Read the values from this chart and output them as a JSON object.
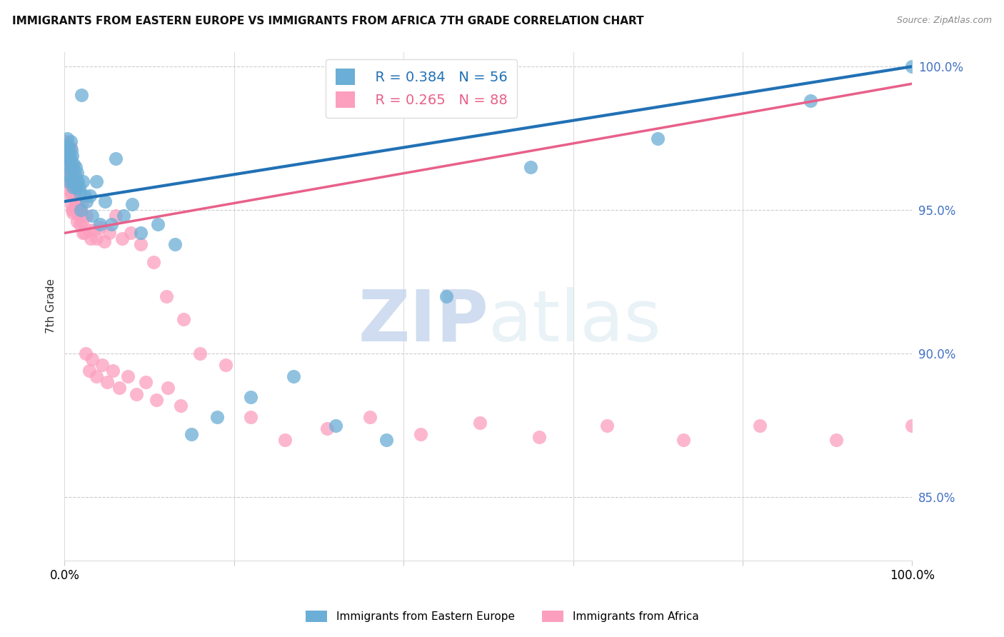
{
  "title": "IMMIGRANTS FROM EASTERN EUROPE VS IMMIGRANTS FROM AFRICA 7TH GRADE CORRELATION CHART",
  "source": "Source: ZipAtlas.com",
  "ylabel": "7th Grade",
  "ytick_labels": [
    "85.0%",
    "90.0%",
    "95.0%",
    "100.0%"
  ],
  "ytick_values": [
    0.85,
    0.9,
    0.95,
    1.0
  ],
  "legend_blue_r": "R = 0.384",
  "legend_blue_n": "N = 56",
  "legend_pink_r": "R = 0.265",
  "legend_pink_n": "N = 88",
  "blue_color": "#6baed6",
  "pink_color": "#fc9fbf",
  "blue_line_color": "#2171b5",
  "pink_line_color": "#e8608a",
  "watermark_zip": "ZIP",
  "watermark_atlas": "atlas",
  "xlim": [
    0.0,
    1.0
  ],
  "ylim": [
    0.828,
    1.005
  ],
  "blue_line_x": [
    0.0,
    1.0
  ],
  "blue_line_y": [
    0.953,
    1.0
  ],
  "pink_line_x": [
    0.0,
    1.0
  ],
  "pink_line_y": [
    0.942,
    0.994
  ],
  "blue_scatter_x": [
    0.001,
    0.002,
    0.003,
    0.004,
    0.004,
    0.005,
    0.005,
    0.006,
    0.006,
    0.007,
    0.007,
    0.007,
    0.008,
    0.008,
    0.009,
    0.009,
    0.01,
    0.01,
    0.011,
    0.011,
    0.012,
    0.013,
    0.013,
    0.014,
    0.015,
    0.016,
    0.017,
    0.018,
    0.019,
    0.02,
    0.022,
    0.024,
    0.026,
    0.03,
    0.033,
    0.038,
    0.042,
    0.048,
    0.055,
    0.06,
    0.07,
    0.08,
    0.09,
    0.11,
    0.13,
    0.15,
    0.18,
    0.22,
    0.27,
    0.32,
    0.38,
    0.45,
    0.55,
    0.7,
    0.88,
    1.0
  ],
  "blue_scatter_y": [
    0.972,
    0.968,
    0.975,
    0.966,
    0.97,
    0.972,
    0.96,
    0.968,
    0.962,
    0.974,
    0.968,
    0.964,
    0.971,
    0.965,
    0.969,
    0.96,
    0.965,
    0.958,
    0.966,
    0.96,
    0.962,
    0.965,
    0.958,
    0.96,
    0.963,
    0.96,
    0.958,
    0.956,
    0.95,
    0.99,
    0.96,
    0.955,
    0.953,
    0.955,
    0.948,
    0.96,
    0.945,
    0.953,
    0.945,
    0.968,
    0.948,
    0.952,
    0.942,
    0.945,
    0.938,
    0.872,
    0.878,
    0.885,
    0.892,
    0.875,
    0.87,
    0.92,
    0.965,
    0.975,
    0.988,
    1.0
  ],
  "pink_scatter_x": [
    0.001,
    0.002,
    0.002,
    0.003,
    0.003,
    0.004,
    0.004,
    0.004,
    0.005,
    0.005,
    0.005,
    0.006,
    0.006,
    0.006,
    0.007,
    0.007,
    0.007,
    0.007,
    0.008,
    0.008,
    0.008,
    0.009,
    0.009,
    0.009,
    0.01,
    0.01,
    0.01,
    0.011,
    0.011,
    0.012,
    0.012,
    0.013,
    0.013,
    0.014,
    0.014,
    0.015,
    0.015,
    0.016,
    0.017,
    0.018,
    0.019,
    0.02,
    0.021,
    0.022,
    0.024,
    0.026,
    0.028,
    0.031,
    0.034,
    0.038,
    0.042,
    0.047,
    0.053,
    0.06,
    0.068,
    0.078,
    0.09,
    0.105,
    0.12,
    0.14,
    0.16,
    0.19,
    0.22,
    0.26,
    0.31,
    0.36,
    0.42,
    0.49,
    0.56,
    0.64,
    0.73,
    0.82,
    0.91,
    1.0,
    0.025,
    0.029,
    0.033,
    0.038,
    0.044,
    0.05,
    0.057,
    0.065,
    0.075,
    0.085,
    0.096,
    0.108,
    0.122,
    0.137
  ],
  "pink_scatter_y": [
    0.974,
    0.971,
    0.967,
    0.973,
    0.968,
    0.97,
    0.965,
    0.96,
    0.972,
    0.966,
    0.961,
    0.968,
    0.963,
    0.957,
    0.972,
    0.965,
    0.96,
    0.955,
    0.964,
    0.958,
    0.952,
    0.962,
    0.956,
    0.95,
    0.96,
    0.955,
    0.949,
    0.956,
    0.95,
    0.962,
    0.956,
    0.959,
    0.952,
    0.958,
    0.952,
    0.952,
    0.946,
    0.95,
    0.948,
    0.945,
    0.949,
    0.952,
    0.946,
    0.942,
    0.942,
    0.948,
    0.943,
    0.94,
    0.943,
    0.94,
    0.944,
    0.939,
    0.942,
    0.948,
    0.94,
    0.942,
    0.938,
    0.932,
    0.92,
    0.912,
    0.9,
    0.896,
    0.878,
    0.87,
    0.874,
    0.878,
    0.872,
    0.876,
    0.871,
    0.875,
    0.87,
    0.875,
    0.87,
    0.875,
    0.9,
    0.894,
    0.898,
    0.892,
    0.896,
    0.89,
    0.894,
    0.888,
    0.892,
    0.886,
    0.89,
    0.884,
    0.888,
    0.882
  ]
}
